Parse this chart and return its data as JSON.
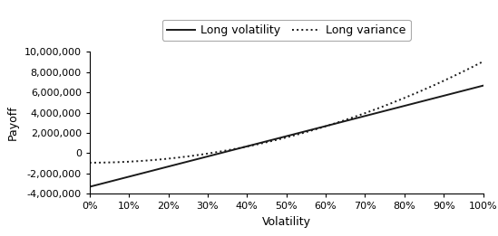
{
  "xlabel": "Volatility",
  "ylabel": "Payoff",
  "vol_min": 0.0,
  "vol_max": 1.0,
  "notional": 10000000,
  "K_vol": 0.3333,
  "K_var": 0.0952,
  "ylim": [
    -4000000,
    10000000
  ],
  "yticks": [
    -4000000,
    -2000000,
    0,
    2000000,
    4000000,
    6000000,
    8000000,
    10000000
  ],
  "xticks": [
    0.0,
    0.1,
    0.2,
    0.3,
    0.4,
    0.5,
    0.6,
    0.7,
    0.8,
    0.9,
    1.0
  ],
  "line_color": "#1a1a1a",
  "legend_labels": [
    "Long volatility",
    "Long variance"
  ],
  "background_color": "#ffffff",
  "legend_edge_color": "#aaaaaa"
}
